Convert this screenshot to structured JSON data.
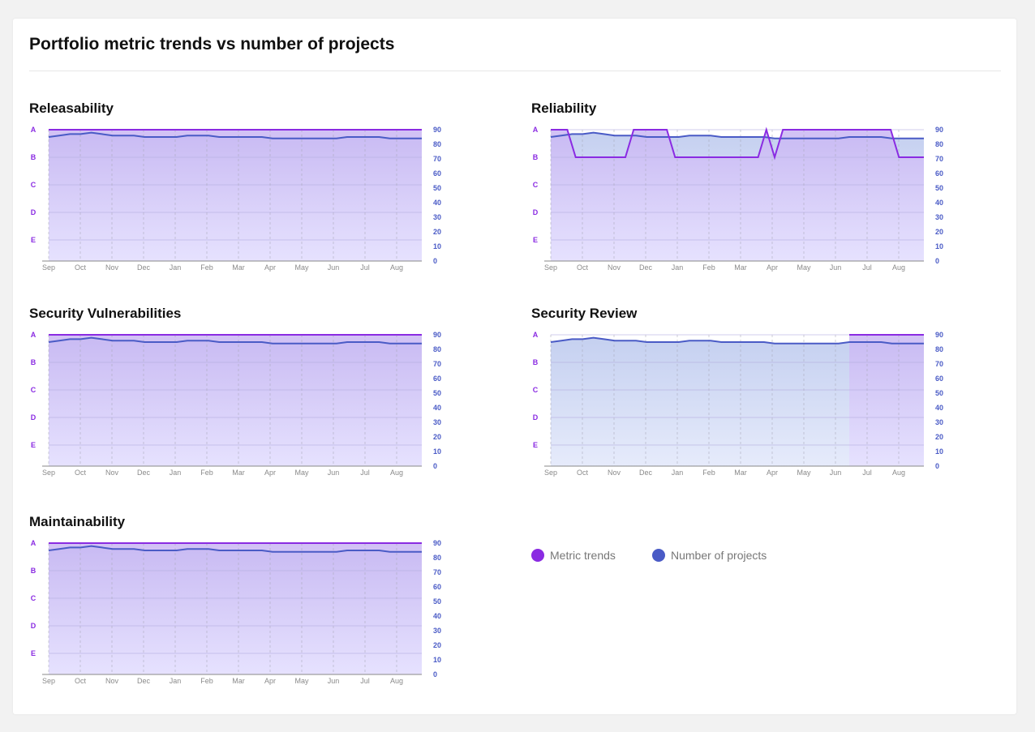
{
  "page": {
    "title": "Portfolio metric trends vs number of projects"
  },
  "colors": {
    "metric": "#8a2be2",
    "projects": "#4a5bc6",
    "metric_fill_top": "#c9b6f3",
    "metric_fill_bottom": "#e6e0ff",
    "projects_fill_top": "#c5d0f0",
    "projects_fill_bottom": "#e6ebfb"
  },
  "legend": {
    "metric_label": "Metric trends",
    "projects_label": "Number of projects"
  },
  "chart_data": [
    {
      "type": "line",
      "title": "Releasability",
      "x_labels": [
        "Sep",
        "Oct",
        "Nov",
        "Dec",
        "Jan",
        "Feb",
        "Mar",
        "Apr",
        "May",
        "Jun",
        "Jul",
        "Aug"
      ],
      "left_axis": [
        "A",
        "B",
        "C",
        "D",
        "E"
      ],
      "right_axis": [
        "90",
        "80",
        "70",
        "60",
        "50",
        "40",
        "30",
        "20",
        "10",
        "0"
      ],
      "ylim": [
        0,
        90
      ],
      "series": [
        {
          "name": "Metric trends",
          "axis": "grade",
          "values": [
            "A",
            "A",
            "A",
            "A",
            "A",
            "A",
            "A",
            "A",
            "A",
            "A",
            "A",
            "A"
          ]
        },
        {
          "name": "Number of projects",
          "axis": "count",
          "values": [
            85,
            86,
            87,
            87,
            88,
            87,
            86,
            86,
            86,
            85,
            85,
            85,
            85,
            86,
            86,
            86,
            85,
            85,
            85,
            85,
            85,
            84,
            84,
            84,
            84,
            84,
            84,
            84,
            85,
            85,
            85,
            85,
            84,
            84,
            84,
            84
          ]
        }
      ],
      "metric_start": 0
    },
    {
      "type": "line",
      "title": "Reliability",
      "x_labels": [
        "Sep",
        "Oct",
        "Nov",
        "Dec",
        "Jan",
        "Feb",
        "Mar",
        "Apr",
        "May",
        "Jun",
        "Jul",
        "Aug"
      ],
      "left_axis": [
        "A",
        "B",
        "C",
        "D",
        "E"
      ],
      "right_axis": [
        "90",
        "80",
        "70",
        "60",
        "50",
        "40",
        "30",
        "20",
        "10",
        "0"
      ],
      "ylim": [
        0,
        90
      ],
      "series": [
        {
          "name": "Metric trends",
          "axis": "grade",
          "values": [
            "A",
            "A",
            "A",
            "B",
            "B",
            "B",
            "B",
            "B",
            "B",
            "B",
            "A",
            "A",
            "A",
            "A",
            "A",
            "B",
            "B",
            "B",
            "B",
            "B",
            "B",
            "B",
            "B",
            "B",
            "B",
            "B",
            "A",
            "B",
            "A",
            "A",
            "A",
            "A",
            "A",
            "A",
            "A",
            "A",
            "A",
            "A",
            "A",
            "A",
            "A",
            "A",
            "B",
            "B",
            "B",
            "B"
          ]
        },
        {
          "name": "Number of projects",
          "axis": "count",
          "values": [
            85,
            86,
            87,
            87,
            88,
            87,
            86,
            86,
            86,
            85,
            85,
            85,
            85,
            86,
            86,
            86,
            85,
            85,
            85,
            85,
            85,
            84,
            84,
            84,
            84,
            84,
            84,
            84,
            85,
            85,
            85,
            85,
            84,
            84,
            84,
            84
          ]
        }
      ],
      "metric_start": 0
    },
    {
      "type": "line",
      "title": "Security Vulnerabilities",
      "x_labels": [
        "Sep",
        "Oct",
        "Nov",
        "Dec",
        "Jan",
        "Feb",
        "Mar",
        "Apr",
        "May",
        "Jun",
        "Jul",
        "Aug"
      ],
      "left_axis": [
        "A",
        "B",
        "C",
        "D",
        "E"
      ],
      "right_axis": [
        "90",
        "80",
        "70",
        "60",
        "50",
        "40",
        "30",
        "20",
        "10",
        "0"
      ],
      "ylim": [
        0,
        90
      ],
      "series": [
        {
          "name": "Metric trends",
          "axis": "grade",
          "values": [
            "A",
            "A",
            "A",
            "A",
            "A",
            "A",
            "A",
            "A",
            "A",
            "A",
            "A",
            "A"
          ]
        },
        {
          "name": "Number of projects",
          "axis": "count",
          "values": [
            85,
            86,
            87,
            87,
            88,
            87,
            86,
            86,
            86,
            85,
            85,
            85,
            85,
            86,
            86,
            86,
            85,
            85,
            85,
            85,
            85,
            84,
            84,
            84,
            84,
            84,
            84,
            84,
            85,
            85,
            85,
            85,
            84,
            84,
            84,
            84
          ]
        }
      ],
      "metric_start": 0
    },
    {
      "type": "line",
      "title": "Security Review",
      "x_labels": [
        "Sep",
        "Oct",
        "Nov",
        "Dec",
        "Jan",
        "Feb",
        "Mar",
        "Apr",
        "May",
        "Jun",
        "Jul",
        "Aug"
      ],
      "left_axis": [
        "A",
        "B",
        "C",
        "D",
        "E"
      ],
      "right_axis": [
        "90",
        "80",
        "70",
        "60",
        "50",
        "40",
        "30",
        "20",
        "10",
        "0"
      ],
      "ylim": [
        0,
        90
      ],
      "series": [
        {
          "name": "Metric trends",
          "axis": "grade",
          "values": [
            "A",
            "A",
            "A",
            "A",
            "A",
            "A",
            "A",
            "A",
            "A",
            "A",
            "A",
            "A"
          ]
        },
        {
          "name": "Number of projects",
          "axis": "count",
          "values": [
            85,
            86,
            87,
            87,
            88,
            87,
            86,
            86,
            86,
            85,
            85,
            85,
            85,
            86,
            86,
            86,
            85,
            85,
            85,
            85,
            85,
            84,
            84,
            84,
            84,
            84,
            84,
            84,
            85,
            85,
            85,
            85,
            84,
            84,
            84,
            84
          ]
        }
      ],
      "metric_start": 0.8
    },
    {
      "type": "line",
      "title": "Maintainability",
      "x_labels": [
        "Sep",
        "Oct",
        "Nov",
        "Dec",
        "Jan",
        "Feb",
        "Mar",
        "Apr",
        "May",
        "Jun",
        "Jul",
        "Aug"
      ],
      "left_axis": [
        "A",
        "B",
        "C",
        "D",
        "E"
      ],
      "right_axis": [
        "90",
        "80",
        "70",
        "60",
        "50",
        "40",
        "30",
        "20",
        "10",
        "0"
      ],
      "ylim": [
        0,
        90
      ],
      "series": [
        {
          "name": "Metric trends",
          "axis": "grade",
          "values": [
            "A",
            "A",
            "A",
            "A",
            "A",
            "A",
            "A",
            "A",
            "A",
            "A",
            "A",
            "A"
          ]
        },
        {
          "name": "Number of projects",
          "axis": "count",
          "values": [
            85,
            86,
            87,
            87,
            88,
            87,
            86,
            86,
            86,
            85,
            85,
            85,
            85,
            86,
            86,
            86,
            85,
            85,
            85,
            85,
            85,
            84,
            84,
            84,
            84,
            84,
            84,
            84,
            85,
            85,
            85,
            85,
            84,
            84,
            84,
            84
          ]
        }
      ],
      "metric_start": 0
    }
  ]
}
